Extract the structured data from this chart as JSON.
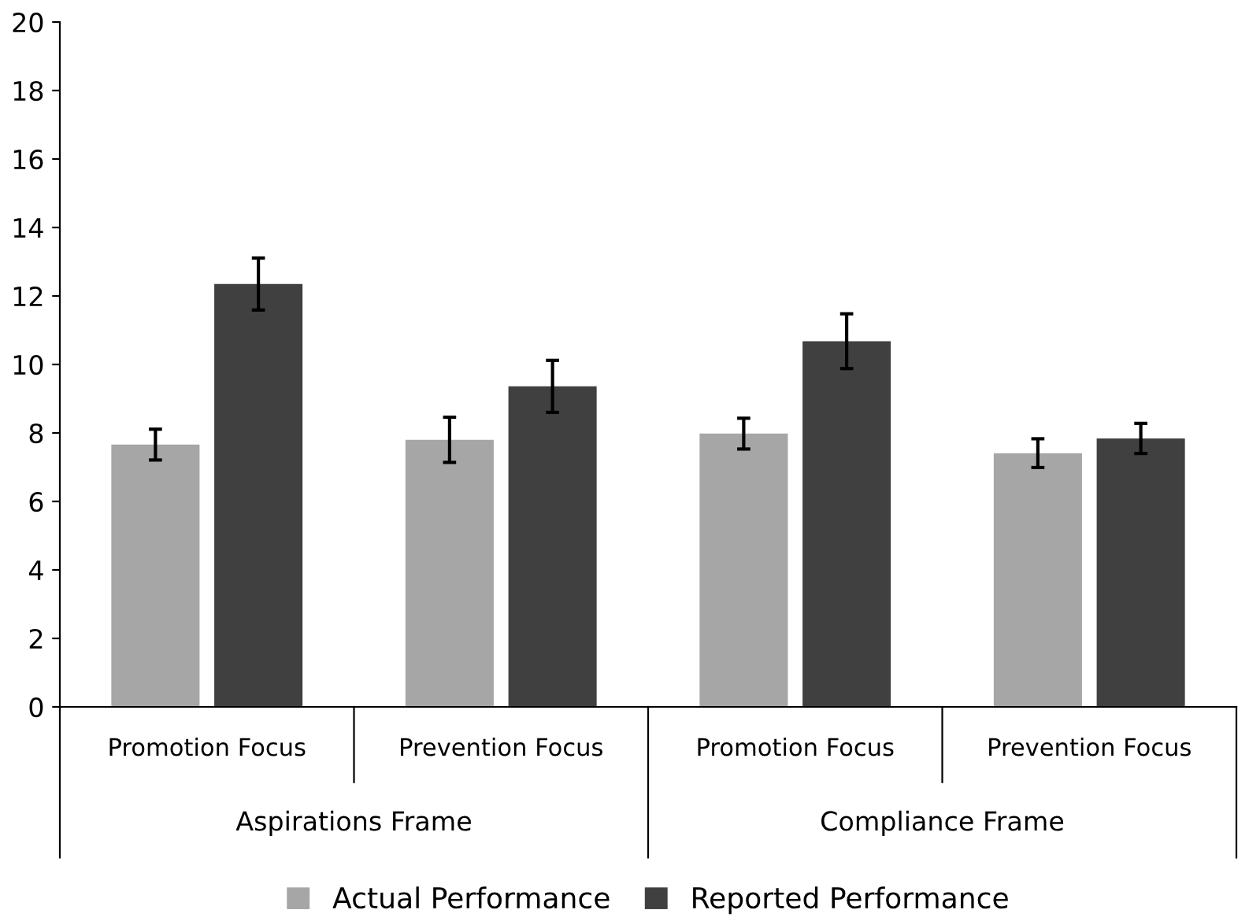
{
  "chart_data": {
    "type": "bar",
    "categories": [
      "Promotion Focus",
      "Prevention Focus",
      "Promotion Focus",
      "Prevention Focus"
    ],
    "annotations": [
      "Aspirations Frame",
      "Compliance Frame"
    ],
    "series": [
      {
        "name": "Actual Performance",
        "color": "#a6a6a6",
        "values": [
          7.66,
          7.8,
          7.98,
          7.41
        ],
        "errors": [
          0.45,
          0.66,
          0.45,
          0.42
        ]
      },
      {
        "name": "Reported Performance",
        "color": "#404040",
        "values": [
          12.35,
          9.36,
          10.68,
          7.84
        ],
        "errors": [
          0.76,
          0.76,
          0.8,
          0.44
        ]
      }
    ],
    "ylim": [
      0,
      20
    ],
    "yticks": [
      0,
      2,
      4,
      6,
      8,
      10,
      12,
      14,
      16,
      18,
      20
    ],
    "grid": false,
    "legend": "bottom"
  }
}
